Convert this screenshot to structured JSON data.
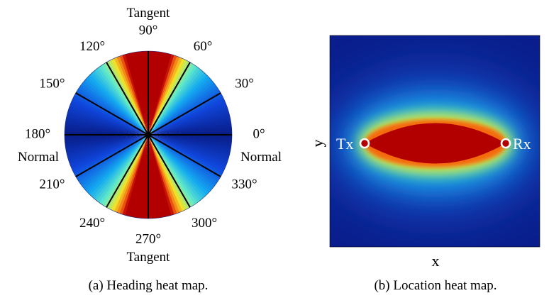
{
  "panel_a": {
    "tangent_top": "Tangent",
    "tangent_bottom": "Tangent",
    "normal_left": "Normal",
    "normal_right": "Normal",
    "angles": [
      {
        "deg": 0,
        "label": "0°"
      },
      {
        "deg": 30,
        "label": "30°"
      },
      {
        "deg": 60,
        "label": "60°"
      },
      {
        "deg": 90,
        "label": "90°"
      },
      {
        "deg": 120,
        "label": "120°"
      },
      {
        "deg": 150,
        "label": "150°"
      },
      {
        "deg": 180,
        "label": "180°"
      },
      {
        "deg": 210,
        "label": "210°"
      },
      {
        "deg": 240,
        "label": "240°"
      },
      {
        "deg": 270,
        "label": "270°"
      },
      {
        "deg": 300,
        "label": "300°"
      },
      {
        "deg": 330,
        "label": "330°"
      }
    ],
    "caption": "(a) Heading heat map."
  },
  "panel_b": {
    "tx_label": "Tx",
    "rx_label": "Rx",
    "x_label": "x",
    "y_label": "y",
    "caption": "(b) Location heat map."
  },
  "colors": {
    "background": "#ffffff",
    "heat_low": "#0a1e8c",
    "heat_high": "#b20000",
    "divider": "#000000",
    "marker": "#ffffff"
  }
}
